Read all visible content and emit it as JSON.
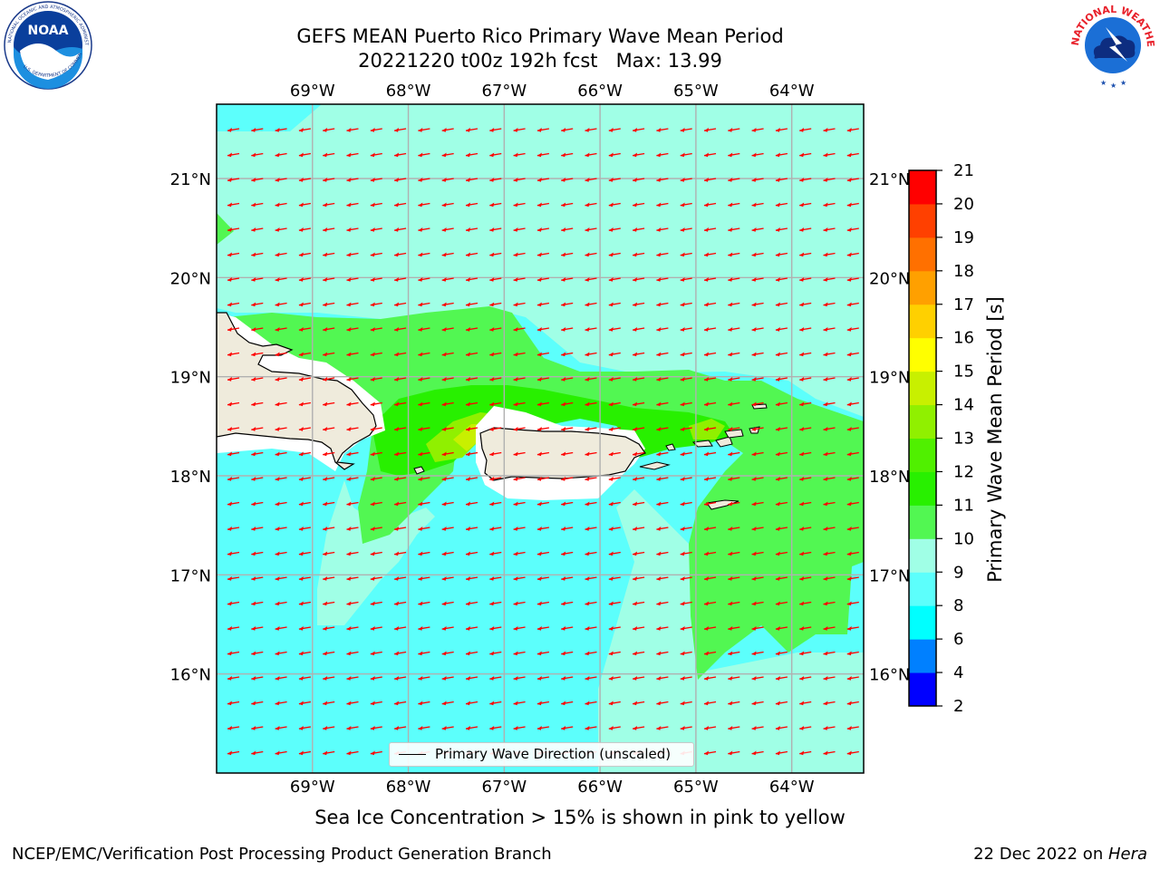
{
  "title": {
    "line1": "GEFS MEAN Puerto Rico Primary Wave Mean Period",
    "line2": "20221220 t00z 192h fcst   Max: 13.99"
  },
  "logos": {
    "left": "noaa-logo",
    "right": "nws-logo",
    "left_ring_text": "NATIONAL OCEANIC AND ATMOSPHERIC ADMINISTRATION",
    "left_inner_text": "NOAA",
    "left_bottom_text": "U.S. DEPARTMENT OF COMMERCE",
    "right_ring_text": "NATIONAL WEATHER SERVICE"
  },
  "map": {
    "lon_ticks": [
      "69°W",
      "68°W",
      "67°W",
      "66°W",
      "65°W",
      "64°W"
    ],
    "lat_ticks": [
      "21°N",
      "20°N",
      "19°N",
      "18°N",
      "17°N",
      "16°N"
    ],
    "lon_range": [
      -70.0,
      -63.25
    ],
    "lat_range": [
      15.0,
      21.75
    ],
    "grid": true,
    "land_color": "#efebdc",
    "arrow_color": "#ff0000",
    "arrow_direction": "toward west-southwest"
  },
  "legend": {
    "label": "Primary Wave Direction (unscaled)"
  },
  "colorbar": {
    "label": "Primary Wave Mean Period [s]",
    "ticks": [
      "2",
      "4",
      "6",
      "8",
      "9",
      "10",
      "11",
      "12",
      "13",
      "14",
      "15",
      "16",
      "17",
      "18",
      "19",
      "20",
      "21"
    ],
    "colors": [
      "#0000ff",
      "#0080ff",
      "#00ffff",
      "#5cfffc",
      "#a0ffe6",
      "#52f752",
      "#28f000",
      "#50f000",
      "#90f000",
      "#c8f000",
      "#ffff00",
      "#ffd000",
      "#ffa000",
      "#ff7000",
      "#ff4000",
      "#ff0000"
    ]
  },
  "note": "Sea Ice Concentration > 15% is shown in pink to yellow",
  "footer": {
    "left": "NCEP/EMC/Verification Post Processing Product Generation Branch",
    "right_prefix": "22 Dec 2022 on ",
    "right_system": "Hera"
  }
}
